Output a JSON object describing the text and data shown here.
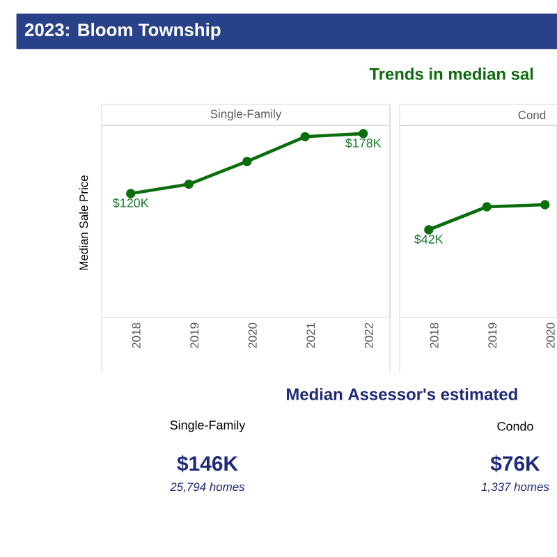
{
  "chart_data": [
    {
      "type": "line",
      "title": "Single-Family",
      "ylabel": "Median Sale Price",
      "categories": [
        "2018",
        "2019",
        "2020",
        "2021",
        "2022"
      ],
      "values": [
        120,
        129,
        151,
        175,
        178
      ],
      "value_labels": [
        "$120K",
        null,
        null,
        null,
        "$178K"
      ],
      "color": "#0b6e0b",
      "ylim": [
        0,
        186
      ],
      "marker": "circle",
      "tick_labels": "x",
      "annotations": [
        "2023:  Bloom Township",
        "Trends in median sal"
      ]
    },
    {
      "type": "line",
      "title": "Cond",
      "categories": [
        "2018",
        "2019",
        "2020"
      ],
      "values": [
        42,
        53,
        54
      ],
      "value_labels": [
        "$42K",
        null,
        null
      ],
      "color": "#0b6e0b",
      "ylim": [
        0,
        92
      ],
      "marker": "circle",
      "tick_labels": "x"
    },
    {
      "type": "other",
      "title": "Median Assessor's estimated",
      "annotations": [
        "Single-Family",
        "$146K",
        "25,794 homes",
        "Condo",
        "$76K",
        "1,337 homes"
      ]
    }
  ]
}
